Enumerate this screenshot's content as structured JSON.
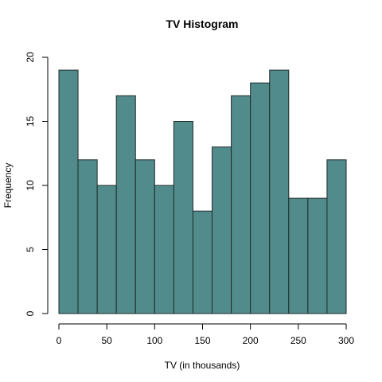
{
  "chart_data": {
    "type": "bar",
    "title": "TV Histogram",
    "xlabel": "TV (in thousands)",
    "ylabel": "Frequency",
    "bin_edges": [
      0,
      20,
      40,
      60,
      80,
      100,
      120,
      140,
      160,
      180,
      200,
      220,
      240,
      260,
      280,
      300
    ],
    "values": [
      19,
      12,
      10,
      17,
      12,
      10,
      15,
      8,
      13,
      17,
      18,
      19,
      9,
      9,
      12
    ],
    "xlim": [
      0,
      300
    ],
    "ylim": [
      0,
      20
    ],
    "x_ticks": [
      0,
      50,
      100,
      150,
      200,
      250,
      300
    ],
    "y_ticks": [
      0,
      5,
      10,
      15,
      20
    ],
    "bar_color": "#528b8b",
    "grid": false
  }
}
